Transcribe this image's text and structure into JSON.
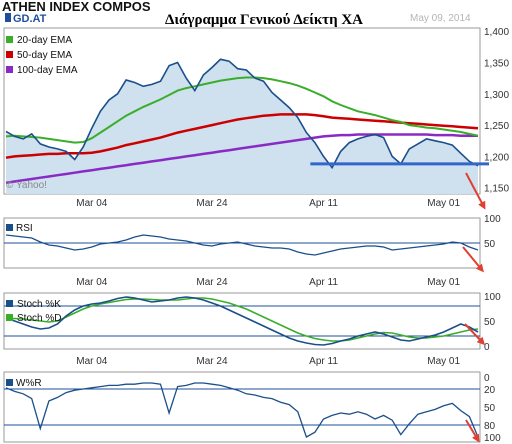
{
  "header": {
    "title": "ATHEN INDEX COMPOS",
    "greek_title": "Διάγραμμα Γενικού Δείκτη ΧΑ",
    "date": "May 09, 2014",
    "ticker": "GD.AT",
    "watermark": "© Yahoo!"
  },
  "colors": {
    "price_fill": "#cfe0ef",
    "price_line": "#1b4f8a",
    "ema20": "#3aae2a",
    "ema50": "#cc0000",
    "ema100": "#8a2ac4",
    "support": "#3366cc",
    "arrow": "#e04030",
    "stoch_k": "#1b4f8a",
    "stoch_d": "#3aae2a",
    "ref_line": "#1e4f9a"
  },
  "chart_data": [
    {
      "type": "line",
      "name": "price",
      "title": "ATHEN INDEX COMPOS",
      "x_ticks": [
        "Mar 04",
        "Mar 24",
        "Apr 11",
        "May 01"
      ],
      "x_tick_index": [
        10,
        24,
        37,
        51
      ],
      "ylim": [
        1140,
        1405
      ],
      "y_ticks": [
        1150,
        1200,
        1250,
        1300,
        1350,
        1400
      ],
      "y_tick_labels": [
        "1,150",
        "1,200",
        "1,250",
        "1,300",
        "1,350",
        "1,400"
      ],
      "legend_position": "top-left",
      "grid": false,
      "series": [
        {
          "name": "close",
          "values": [
            1240,
            1232,
            1228,
            1236,
            1220,
            1215,
            1212,
            1208,
            1195,
            1215,
            1245,
            1272,
            1290,
            1300,
            1322,
            1318,
            1312,
            1315,
            1320,
            1345,
            1350,
            1325,
            1305,
            1330,
            1342,
            1355,
            1352,
            1340,
            1338,
            1325,
            1320,
            1302,
            1290,
            1278,
            1262,
            1238,
            1222,
            1200,
            1182,
            1208,
            1222,
            1228,
            1232,
            1235,
            1230,
            1200,
            1188,
            1212,
            1220,
            1228,
            1225,
            1222,
            1218,
            1205,
            1192,
            1185
          ]
        },
        {
          "name": "20-day EMA",
          "values": [
            1232,
            1233,
            1232,
            1231,
            1230,
            1228,
            1226,
            1224,
            1222,
            1223,
            1229,
            1238,
            1247,
            1256,
            1265,
            1272,
            1279,
            1285,
            1291,
            1298,
            1305,
            1309,
            1312,
            1315,
            1318,
            1321,
            1323,
            1325,
            1326,
            1326,
            1325,
            1323,
            1320,
            1317,
            1313,
            1308,
            1302,
            1296,
            1288,
            1282,
            1277,
            1272,
            1269,
            1266,
            1262,
            1258,
            1255,
            1250,
            1248,
            1246,
            1245,
            1243,
            1241,
            1239,
            1236,
            1233
          ]
        },
        {
          "name": "50-day EMA",
          "values": [
            1198,
            1200,
            1201,
            1202,
            1203,
            1204,
            1204,
            1205,
            1205,
            1205,
            1206,
            1208,
            1211,
            1214,
            1218,
            1221,
            1224,
            1227,
            1230,
            1234,
            1238,
            1241,
            1244,
            1247,
            1250,
            1253,
            1256,
            1259,
            1261,
            1263,
            1265,
            1266,
            1267,
            1267,
            1267,
            1267,
            1266,
            1264,
            1262,
            1261,
            1260,
            1259,
            1258,
            1257,
            1256,
            1255,
            1254,
            1253,
            1252,
            1251,
            1250,
            1249,
            1248,
            1247,
            1246,
            1245
          ]
        },
        {
          "name": "100-day EMA",
          "values": [
            1158,
            1160,
            1162,
            1164,
            1166,
            1168,
            1170,
            1172,
            1174,
            1176,
            1178,
            1180,
            1182,
            1184,
            1186,
            1188,
            1190,
            1192,
            1194,
            1196,
            1198,
            1200,
            1202,
            1204,
            1206,
            1208,
            1210,
            1212,
            1214,
            1216,
            1218,
            1220,
            1222,
            1224,
            1226,
            1228,
            1230,
            1232,
            1233,
            1234,
            1234,
            1235,
            1235,
            1235,
            1235,
            1235,
            1235,
            1235,
            1235,
            1235,
            1234,
            1234,
            1234,
            1233,
            1233,
            1233
          ]
        }
      ],
      "support_level": 1188,
      "support_range_index": [
        35,
        55
      ]
    },
    {
      "type": "line",
      "name": "RSI",
      "legend": "RSI",
      "ylim": [
        0,
        100
      ],
      "y_ticks": [
        50,
        100
      ],
      "y_tick_labels": [
        "50",
        "100"
      ],
      "reference_lines": [
        50
      ],
      "x_ticks": [
        "Mar 04",
        "Mar 24",
        "Apr 11",
        "May 01"
      ],
      "series": [
        {
          "name": "RSI",
          "values": [
            66,
            64,
            62,
            60,
            52,
            46,
            44,
            40,
            36,
            38,
            42,
            48,
            50,
            52,
            56,
            62,
            66,
            64,
            62,
            58,
            56,
            54,
            50,
            46,
            44,
            48,
            50,
            52,
            48,
            44,
            42,
            40,
            40,
            38,
            32,
            28,
            26,
            30,
            34,
            38,
            40,
            42,
            44,
            44,
            42,
            36,
            38,
            40,
            42,
            44,
            46,
            48,
            52,
            50,
            42,
            36
          ]
        }
      ]
    },
    {
      "type": "line",
      "name": "Stochastic",
      "ylim": [
        0,
        100
      ],
      "y_ticks": [
        0,
        50,
        100
      ],
      "y_tick_labels": [
        "0",
        "50",
        "100"
      ],
      "reference_lines": [
        20,
        80
      ],
      "x_ticks": [
        "Mar 04",
        "Mar 24",
        "Apr 11",
        "May 01"
      ],
      "series": [
        {
          "name": "Stoch %K",
          "values": [
            56,
            50,
            44,
            38,
            34,
            36,
            44,
            60,
            72,
            80,
            84,
            86,
            90,
            95,
            98,
            96,
            92,
            88,
            90,
            92,
            96,
            98,
            96,
            92,
            86,
            80,
            72,
            64,
            56,
            48,
            40,
            32,
            24,
            16,
            10,
            6,
            3,
            2,
            5,
            10,
            14,
            20,
            24,
            28,
            24,
            18,
            12,
            10,
            14,
            18,
            22,
            28,
            36,
            44,
            38,
            28
          ]
        },
        {
          "name": "Stoch %D",
          "values": [
            55,
            55,
            54,
            52,
            50,
            48,
            50,
            58,
            66,
            74,
            80,
            84,
            87,
            90,
            93,
            94,
            94,
            93,
            92,
            92,
            92,
            94,
            96,
            96,
            94,
            90,
            86,
            80,
            74,
            66,
            58,
            50,
            42,
            34,
            26,
            20,
            15,
            12,
            10,
            10,
            12,
            16,
            20,
            24,
            27,
            26,
            22,
            18,
            16,
            16,
            18,
            20,
            24,
            28,
            32,
            34
          ]
        }
      ]
    },
    {
      "type": "line",
      "name": "W%R",
      "legend": "W%R",
      "ylim": [
        0,
        100
      ],
      "inverted": true,
      "y_ticks": [
        0,
        20,
        50,
        80,
        100
      ],
      "y_tick_labels": [
        "0",
        "20",
        "50",
        "80",
        "100"
      ],
      "reference_lines": [
        20,
        80
      ],
      "x_ticks": [
        "Mar 04",
        "Mar 24",
        "Apr 11",
        "May 01"
      ],
      "series": [
        {
          "name": "W%R",
          "values": [
            18,
            24,
            28,
            36,
            86,
            40,
            34,
            26,
            22,
            20,
            18,
            16,
            14,
            14,
            12,
            12,
            10,
            10,
            12,
            60,
            16,
            14,
            10,
            10,
            12,
            14,
            18,
            22,
            28,
            30,
            34,
            36,
            42,
            46,
            58,
            100,
            92,
            70,
            64,
            60,
            62,
            58,
            62,
            70,
            64,
            72,
            96,
            78,
            62,
            58,
            54,
            48,
            44,
            56,
            66,
            100
          ]
        }
      ]
    }
  ]
}
